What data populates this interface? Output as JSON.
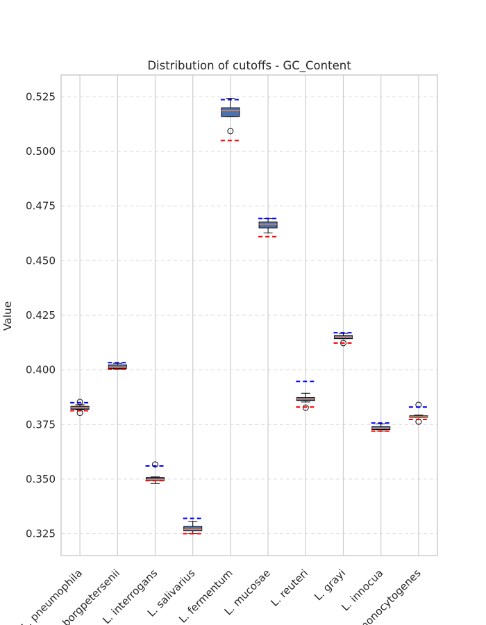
{
  "chart_data": {
    "type": "box",
    "title": "Distribution of cutoffs - GC_Content",
    "xlabel": "",
    "ylabel": "Value",
    "ylim": [
      0.315,
      0.535
    ],
    "yticks": [
      "0.325",
      "0.350",
      "0.375",
      "0.400",
      "0.425",
      "0.450",
      "0.475",
      "0.500",
      "0.525"
    ],
    "grid": true,
    "categories": [
      "L. pneumophila",
      "L. borgpetersenii",
      "L. interrogans",
      "L. salivarius",
      "L. fermentum",
      "L. mucosae",
      "L. reuteri",
      "L. grayi",
      "L. innocua",
      "L. monocytogenes"
    ],
    "boxes": [
      {
        "whisker_low": 0.3818,
        "q1": 0.382,
        "median": 0.3827,
        "q3": 0.3833,
        "whisker_high": 0.384,
        "outliers": [
          0.3803,
          0.3853
        ],
        "blue_line": 0.385,
        "red_line": 0.3813
      },
      {
        "whisker_low": 0.4003,
        "q1": 0.4007,
        "median": 0.4013,
        "q3": 0.4023,
        "whisker_high": 0.403,
        "outliers": [],
        "blue_line": 0.4033,
        "red_line": 0.4003
      },
      {
        "whisker_low": 0.348,
        "q1": 0.3493,
        "median": 0.3497,
        "q3": 0.3507,
        "whisker_high": 0.351,
        "outliers": [
          0.3567
        ],
        "blue_line": 0.356,
        "red_line": 0.3493
      },
      {
        "whisker_low": 0.325,
        "q1": 0.3263,
        "median": 0.327,
        "q3": 0.3283,
        "whisker_high": 0.3307,
        "outliers": [],
        "blue_line": 0.332,
        "red_line": 0.325
      },
      {
        "whisker_low": 0.516,
        "q1": 0.516,
        "median": 0.5187,
        "q3": 0.52,
        "whisker_high": 0.5243,
        "outliers": [
          0.5093
        ],
        "blue_line": 0.5237,
        "red_line": 0.505
      },
      {
        "whisker_low": 0.4627,
        "q1": 0.465,
        "median": 0.4667,
        "q3": 0.4677,
        "whisker_high": 0.4693,
        "outliers": [],
        "blue_line": 0.4693,
        "red_line": 0.461
      },
      {
        "whisker_low": 0.3853,
        "q1": 0.386,
        "median": 0.3867,
        "q3": 0.3873,
        "whisker_high": 0.3893,
        "outliers": [
          0.3827
        ],
        "blue_line": 0.3947,
        "red_line": 0.383
      },
      {
        "whisker_low": 0.4143,
        "q1": 0.4143,
        "median": 0.415,
        "q3": 0.4157,
        "whisker_high": 0.4167,
        "outliers": [
          0.4123
        ],
        "blue_line": 0.417,
        "red_line": 0.4123
      },
      {
        "whisker_low": 0.372,
        "q1": 0.3727,
        "median": 0.3733,
        "q3": 0.374,
        "whisker_high": 0.3753,
        "outliers": [],
        "blue_line": 0.3757,
        "red_line": 0.372
      },
      {
        "whisker_low": 0.3783,
        "q1": 0.3783,
        "median": 0.3787,
        "q3": 0.379,
        "whisker_high": 0.3793,
        "outliers": [
          0.3763,
          0.384
        ],
        "blue_line": 0.383,
        "red_line": 0.3773
      }
    ],
    "colors": {
      "box_fill": "#4c72b0",
      "box_edge": "#000000",
      "median": "#dd8452",
      "blue_line": "#0000ff",
      "red_line": "#ff0000",
      "grid": "#d9d9d9",
      "gridline_vertical": "#cccccc",
      "spine": "#cccccc"
    }
  }
}
